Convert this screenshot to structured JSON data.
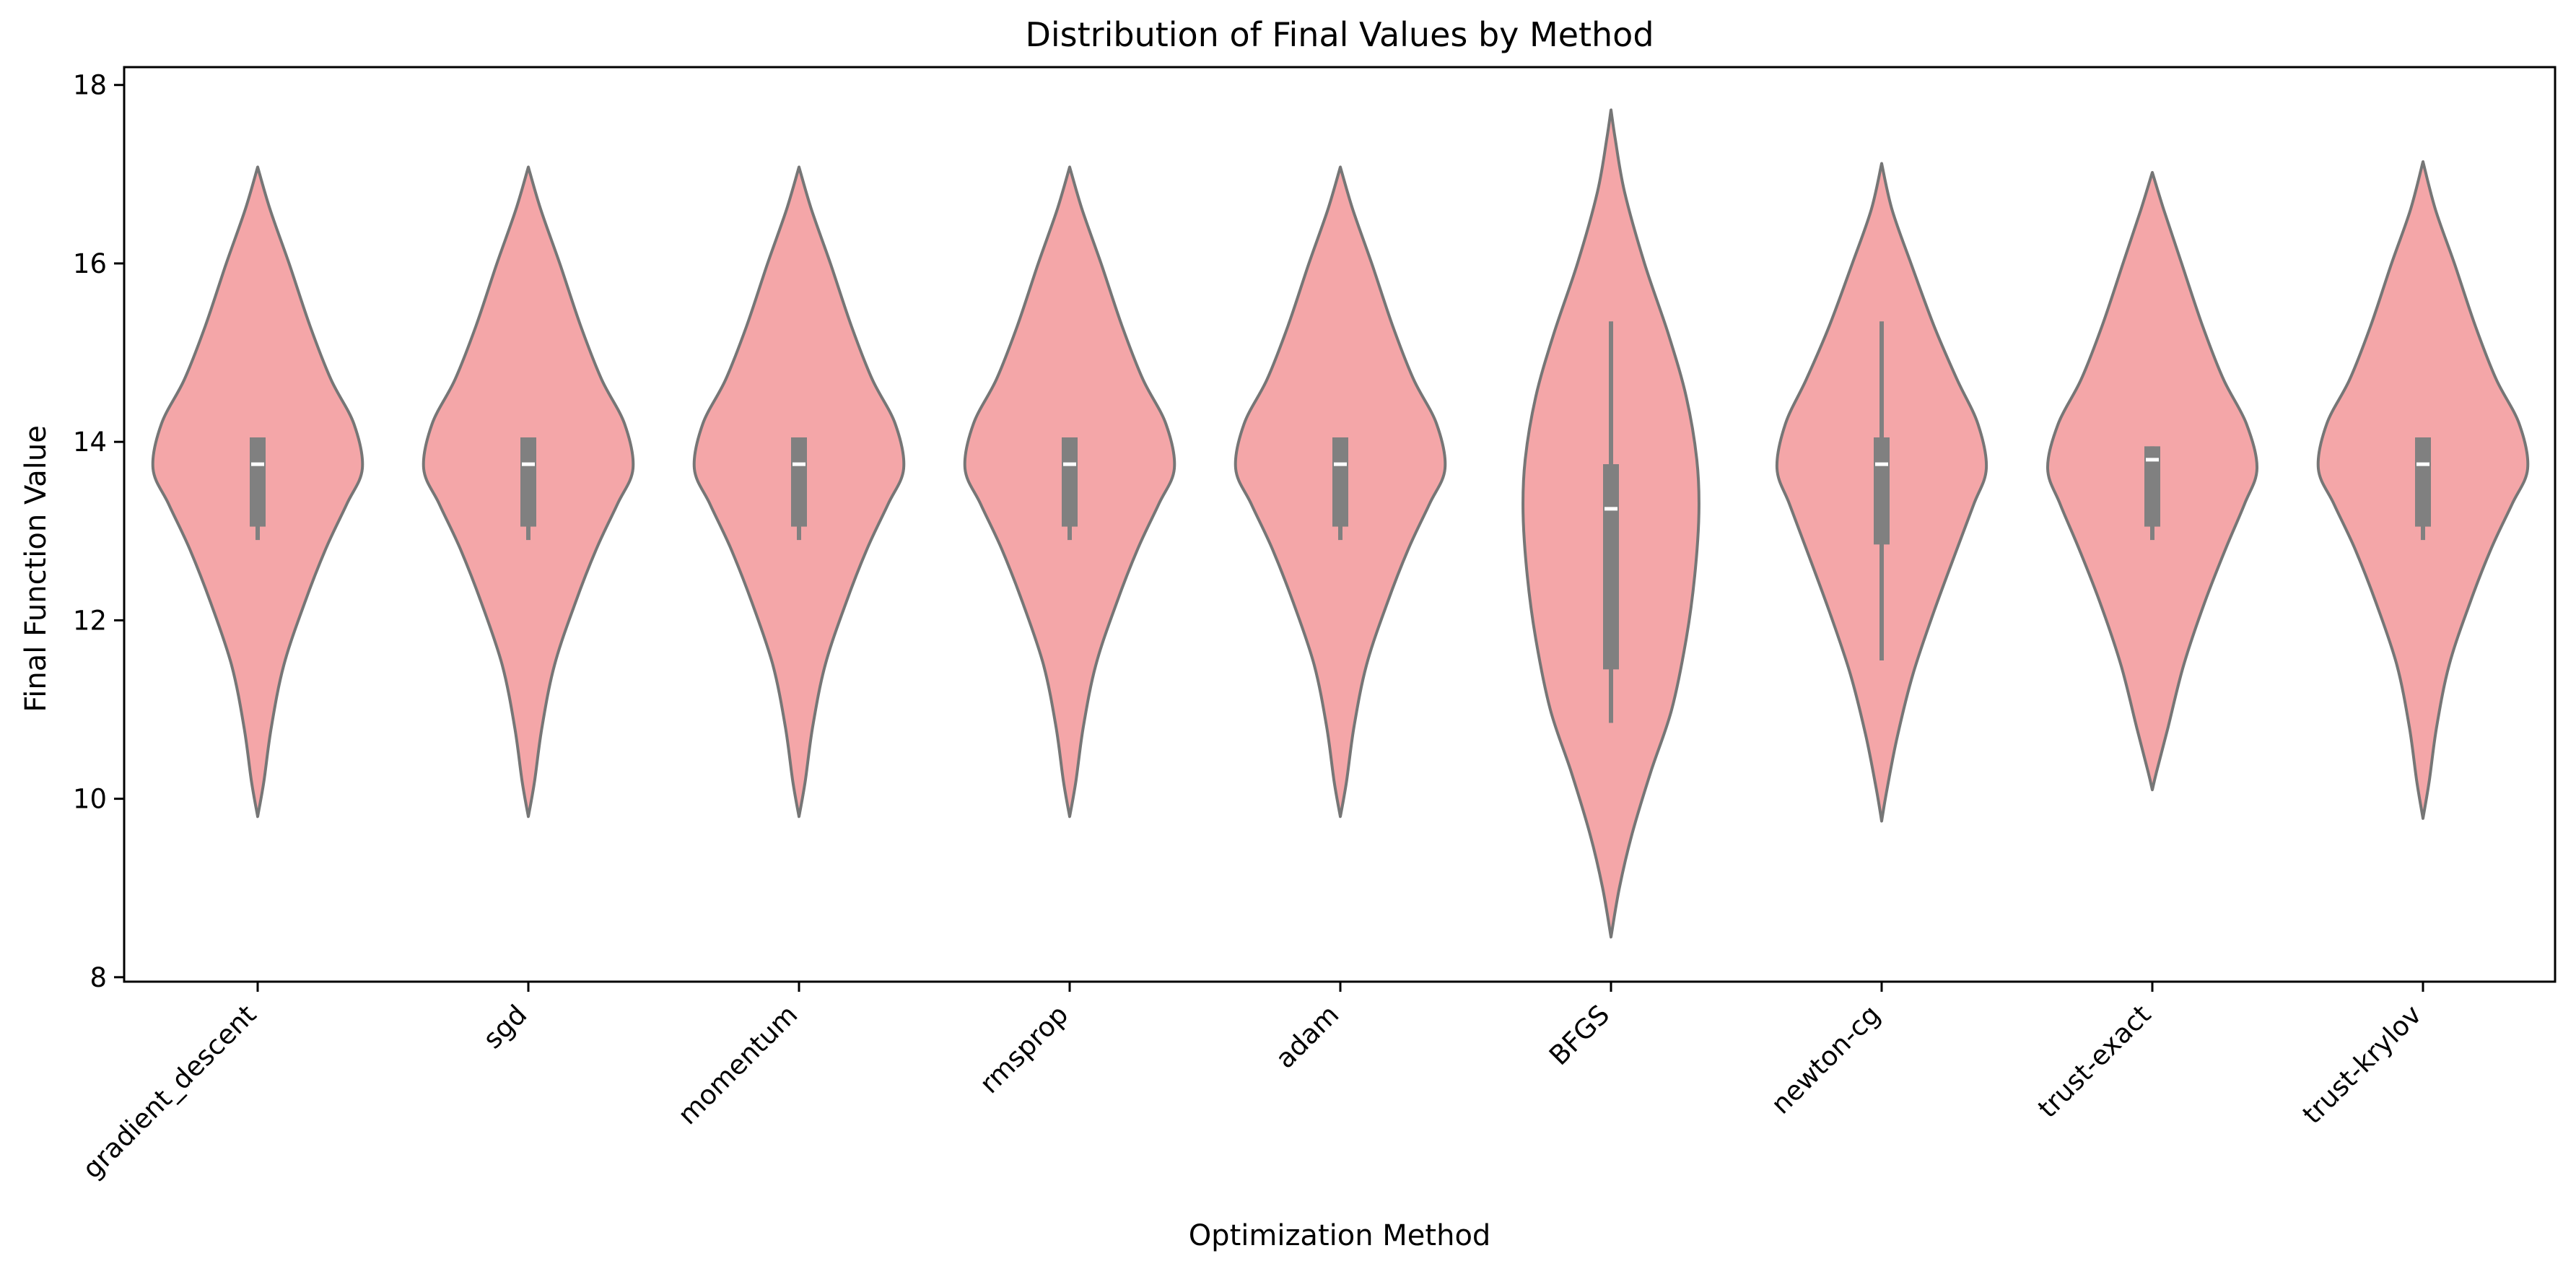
{
  "chart_data": {
    "type": "violin",
    "title": "Distribution of Final Values by Method",
    "xlabel": "Optimization Method",
    "ylabel": "Final Function Value",
    "ylim": [
      7.95,
      18.2
    ],
    "yticks": [
      8,
      10,
      12,
      14,
      16,
      18
    ],
    "grid": false,
    "colors": {
      "violin_fill": "#f4a6a8",
      "violin_edge": "#767676",
      "box": "#808080",
      "median": "#ffffff",
      "axes": "#000000"
    },
    "categories": [
      "gradient_descent",
      "sgd",
      "momentum",
      "rmsprop",
      "adam",
      "BFGS",
      "newton-cg",
      "trust-exact",
      "trust-krylov"
    ],
    "violins": [
      {
        "min": 9.8,
        "max": 17.08,
        "q1": 13.05,
        "median": 13.75,
        "q3": 14.05,
        "whisker_low": 12.9,
        "whisker_high": 14.05,
        "profile": [
          [
            9.8,
            0.0
          ],
          [
            10.2,
            0.06
          ],
          [
            10.8,
            0.13
          ],
          [
            11.5,
            0.25
          ],
          [
            12.2,
            0.45
          ],
          [
            12.8,
            0.65
          ],
          [
            13.3,
            0.85
          ],
          [
            13.7,
            1.0
          ],
          [
            14.2,
            0.92
          ],
          [
            14.7,
            0.7
          ],
          [
            15.3,
            0.5
          ],
          [
            16.0,
            0.3
          ],
          [
            16.6,
            0.12
          ],
          [
            17.08,
            0.0
          ]
        ]
      },
      {
        "min": 9.8,
        "max": 17.08,
        "q1": 13.05,
        "median": 13.75,
        "q3": 14.05,
        "whisker_low": 12.9,
        "whisker_high": 14.05,
        "profile": [
          [
            9.8,
            0.0
          ],
          [
            10.2,
            0.06
          ],
          [
            10.8,
            0.13
          ],
          [
            11.5,
            0.25
          ],
          [
            12.2,
            0.45
          ],
          [
            12.8,
            0.65
          ],
          [
            13.3,
            0.85
          ],
          [
            13.7,
            1.0
          ],
          [
            14.2,
            0.92
          ],
          [
            14.7,
            0.7
          ],
          [
            15.3,
            0.5
          ],
          [
            16.0,
            0.3
          ],
          [
            16.6,
            0.12
          ],
          [
            17.08,
            0.0
          ]
        ]
      },
      {
        "min": 9.8,
        "max": 17.08,
        "q1": 13.05,
        "median": 13.75,
        "q3": 14.05,
        "whisker_low": 12.9,
        "whisker_high": 14.05,
        "profile": [
          [
            9.8,
            0.0
          ],
          [
            10.2,
            0.06
          ],
          [
            10.8,
            0.13
          ],
          [
            11.5,
            0.25
          ],
          [
            12.2,
            0.45
          ],
          [
            12.8,
            0.65
          ],
          [
            13.3,
            0.85
          ],
          [
            13.7,
            1.0
          ],
          [
            14.2,
            0.92
          ],
          [
            14.7,
            0.7
          ],
          [
            15.3,
            0.5
          ],
          [
            16.0,
            0.3
          ],
          [
            16.6,
            0.12
          ],
          [
            17.08,
            0.0
          ]
        ]
      },
      {
        "min": 9.8,
        "max": 17.08,
        "q1": 13.05,
        "median": 13.75,
        "q3": 14.05,
        "whisker_low": 12.9,
        "whisker_high": 14.05,
        "profile": [
          [
            9.8,
            0.0
          ],
          [
            10.2,
            0.06
          ],
          [
            10.8,
            0.13
          ],
          [
            11.5,
            0.25
          ],
          [
            12.2,
            0.45
          ],
          [
            12.8,
            0.65
          ],
          [
            13.3,
            0.85
          ],
          [
            13.7,
            1.0
          ],
          [
            14.2,
            0.92
          ],
          [
            14.7,
            0.7
          ],
          [
            15.3,
            0.5
          ],
          [
            16.0,
            0.3
          ],
          [
            16.6,
            0.12
          ],
          [
            17.08,
            0.0
          ]
        ]
      },
      {
        "min": 9.8,
        "max": 17.08,
        "q1": 13.05,
        "median": 13.75,
        "q3": 14.05,
        "whisker_low": 12.9,
        "whisker_high": 14.05,
        "profile": [
          [
            9.8,
            0.0
          ],
          [
            10.2,
            0.06
          ],
          [
            10.8,
            0.13
          ],
          [
            11.5,
            0.25
          ],
          [
            12.2,
            0.45
          ],
          [
            12.8,
            0.65
          ],
          [
            13.3,
            0.85
          ],
          [
            13.7,
            1.0
          ],
          [
            14.2,
            0.92
          ],
          [
            14.7,
            0.7
          ],
          [
            15.3,
            0.5
          ],
          [
            16.0,
            0.3
          ],
          [
            16.6,
            0.12
          ],
          [
            17.08,
            0.0
          ]
        ]
      },
      {
        "min": 8.45,
        "max": 17.72,
        "q1": 11.45,
        "median": 13.25,
        "q3": 13.75,
        "whisker_low": 10.85,
        "whisker_high": 15.35,
        "profile": [
          [
            8.45,
            0.0
          ],
          [
            9.0,
            0.08
          ],
          [
            9.6,
            0.2
          ],
          [
            10.3,
            0.38
          ],
          [
            11.0,
            0.58
          ],
          [
            11.8,
            0.72
          ],
          [
            12.5,
            0.8
          ],
          [
            13.2,
            0.84
          ],
          [
            13.8,
            0.82
          ],
          [
            14.5,
            0.72
          ],
          [
            15.2,
            0.55
          ],
          [
            16.0,
            0.32
          ],
          [
            16.8,
            0.13
          ],
          [
            17.4,
            0.04
          ],
          [
            17.72,
            0.0
          ]
        ]
      },
      {
        "min": 9.75,
        "max": 17.12,
        "q1": 12.85,
        "median": 13.75,
        "q3": 14.05,
        "whisker_low": 11.55,
        "whisker_high": 15.35,
        "profile": [
          [
            9.75,
            0.0
          ],
          [
            10.1,
            0.05
          ],
          [
            10.7,
            0.15
          ],
          [
            11.4,
            0.3
          ],
          [
            12.1,
            0.5
          ],
          [
            12.8,
            0.72
          ],
          [
            13.3,
            0.88
          ],
          [
            13.7,
            1.0
          ],
          [
            14.2,
            0.92
          ],
          [
            14.7,
            0.72
          ],
          [
            15.3,
            0.5
          ],
          [
            16.0,
            0.28
          ],
          [
            16.6,
            0.1
          ],
          [
            17.12,
            0.0
          ]
        ]
      },
      {
        "min": 10.1,
        "max": 17.02,
        "q1": 13.05,
        "median": 13.8,
        "q3": 13.95,
        "whisker_low": 12.9,
        "whisker_high": 13.95,
        "profile": [
          [
            10.1,
            0.0
          ],
          [
            10.3,
            0.04
          ],
          [
            10.8,
            0.15
          ],
          [
            11.5,
            0.3
          ],
          [
            12.2,
            0.5
          ],
          [
            12.8,
            0.7
          ],
          [
            13.3,
            0.88
          ],
          [
            13.7,
            1.0
          ],
          [
            14.2,
            0.9
          ],
          [
            14.7,
            0.68
          ],
          [
            15.3,
            0.48
          ],
          [
            16.0,
            0.28
          ],
          [
            16.6,
            0.11
          ],
          [
            17.02,
            0.0
          ]
        ]
      },
      {
        "min": 9.78,
        "max": 17.14,
        "q1": 13.05,
        "median": 13.75,
        "q3": 14.05,
        "whisker_low": 12.9,
        "whisker_high": 14.05,
        "profile": [
          [
            9.78,
            0.0
          ],
          [
            10.2,
            0.06
          ],
          [
            10.8,
            0.13
          ],
          [
            11.5,
            0.25
          ],
          [
            12.2,
            0.45
          ],
          [
            12.8,
            0.65
          ],
          [
            13.3,
            0.85
          ],
          [
            13.7,
            1.0
          ],
          [
            14.2,
            0.92
          ],
          [
            14.7,
            0.7
          ],
          [
            15.3,
            0.5
          ],
          [
            16.0,
            0.3
          ],
          [
            16.6,
            0.12
          ],
          [
            17.14,
            0.0
          ]
        ]
      }
    ]
  }
}
